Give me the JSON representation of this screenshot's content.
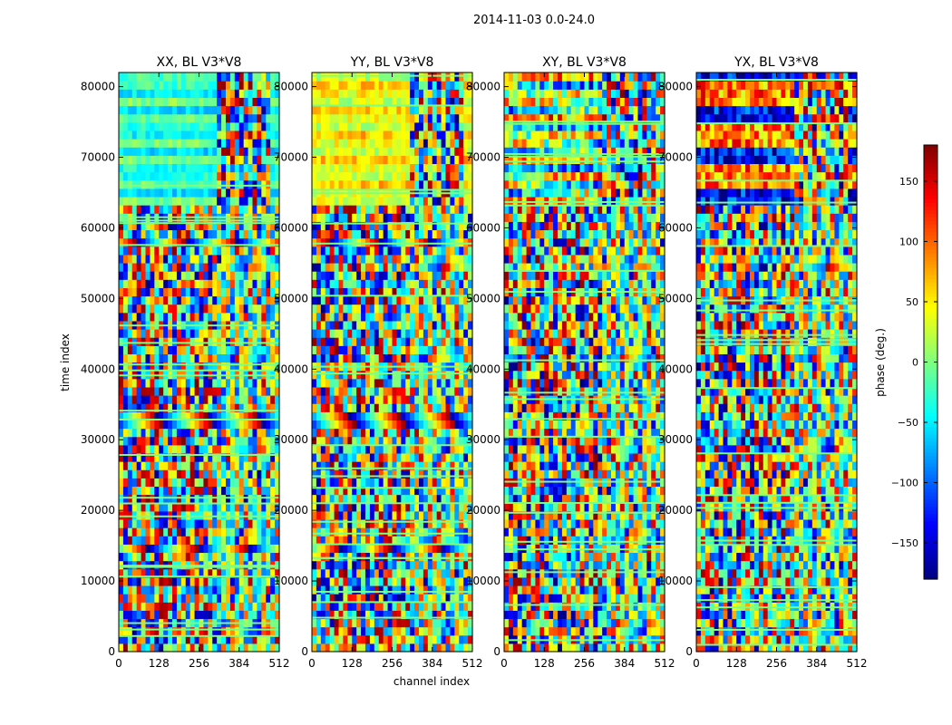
{
  "figure_title": "2014-11-03 0.0-24.0",
  "chart_data": {
    "type": "heatmap",
    "ylabel": "time index",
    "xlabel": "channel index",
    "x_range": [
      0,
      512
    ],
    "y_range": [
      0,
      82000
    ],
    "x_ticks": [
      0,
      128,
      256,
      384,
      512
    ],
    "y_ticks": [
      0,
      10000,
      20000,
      30000,
      40000,
      50000,
      60000,
      70000,
      80000
    ],
    "panels": [
      {
        "title": "XX, BL V3*V8"
      },
      {
        "title": "YY, BL V3*V8"
      },
      {
        "title": "XY, BL V3*V8"
      },
      {
        "title": "YX, BL V3*V8"
      }
    ],
    "colorbar": {
      "label": "phase (deg.)",
      "range": [
        -180,
        180
      ],
      "ticks": [
        150,
        100,
        50,
        0,
        -50,
        -100,
        -150
      ],
      "tick_labels": [
        "150",
        "100",
        "50",
        "0",
        "−50",
        "−100",
        "−150"
      ],
      "colormap": [
        "#00007f",
        "#0000ff",
        "#007fff",
        "#00ffff",
        "#7fff7f",
        "#ffff00",
        "#ff7f00",
        "#ff0000",
        "#7f0000"
      ]
    }
  }
}
